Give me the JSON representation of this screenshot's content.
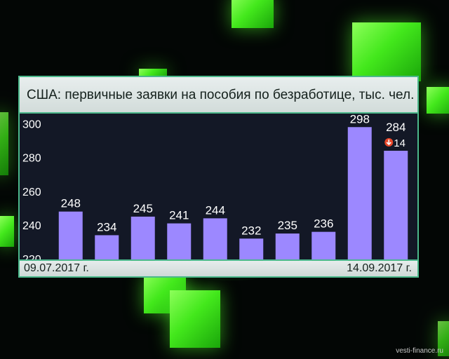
{
  "chart_data": {
    "type": "bar",
    "title": "США: первичные заявки на пособия по безработице, тыс. чел.",
    "categories": [
      "",
      "",
      "",
      "",
      "",
      "",
      "",
      "",
      "",
      ""
    ],
    "values": [
      248,
      234,
      245,
      241,
      244,
      232,
      235,
      236,
      298,
      284
    ],
    "yticks": [
      220,
      240,
      260,
      280,
      300
    ],
    "ylim": [
      218,
      306
    ],
    "x_start_label": "09.07.2017 г.",
    "x_end_label": "14.09.2017 г.",
    "change_annotation": {
      "index": 9,
      "direction": "down",
      "value": "14"
    },
    "grid": false
  },
  "colors": {
    "bar": "#9c88ff",
    "label": "#ffffff",
    "down_badge": "#e8472a",
    "frame": "#4bb88b"
  },
  "watermark": "vesti-finance.ru"
}
